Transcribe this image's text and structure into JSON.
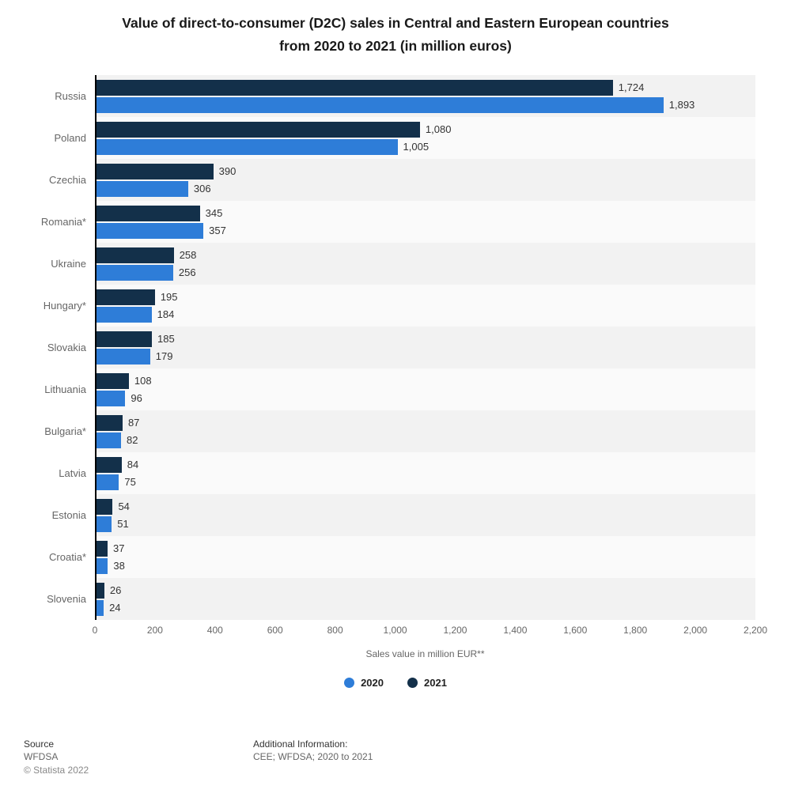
{
  "title": {
    "line1": "Value of direct-to-consumer (D2C) sales in Central and Eastern European countries",
    "line2": "from 2020 to 2021 (in million euros)"
  },
  "chart_data": {
    "type": "bar",
    "orientation": "horizontal",
    "title": "Value of direct-to-consumer (D2C) sales in Central and Eastern European countries from 2020 to 2021 (in million euros)",
    "categories": [
      "Russia",
      "Poland",
      "Czechia",
      "Romania*",
      "Ukraine",
      "Hungary*",
      "Slovakia",
      "Lithuania",
      "Bulgaria*",
      "Latvia",
      "Estonia",
      "Croatia*",
      "Slovenia"
    ],
    "series": [
      {
        "name": "2021",
        "color": "#13304a",
        "values": [
          1724,
          1080,
          390,
          345,
          258,
          195,
          185,
          108,
          87,
          84,
          54,
          37,
          26
        ]
      },
      {
        "name": "2020",
        "color": "#2e7dd8",
        "values": [
          1893,
          1005,
          306,
          357,
          256,
          184,
          179,
          96,
          82,
          75,
          51,
          38,
          24
        ]
      }
    ],
    "xlabel": "Sales value in million EUR**",
    "xlim": [
      0,
      2200
    ],
    "xticks": [
      0,
      200,
      400,
      600,
      800,
      1000,
      1200,
      1400,
      1600,
      1800,
      2000,
      2200
    ],
    "xtick_labels": [
      "0",
      "200",
      "400",
      "600",
      "800",
      "1,000",
      "1,200",
      "1,400",
      "1,600",
      "1,800",
      "2,000",
      "2,200"
    ],
    "grid": "off",
    "legend_position": "bottom",
    "legend": [
      {
        "label": "2020",
        "color": "#2e7dd8"
      },
      {
        "label": "2021",
        "color": "#13304a"
      }
    ]
  },
  "footer": {
    "source_label": "Source",
    "source_value": "WFDSA",
    "copyright": "© Statista 2022",
    "additional_label": "Additional Information:",
    "additional_value": "CEE; WFDSA; 2020 to 2021"
  }
}
